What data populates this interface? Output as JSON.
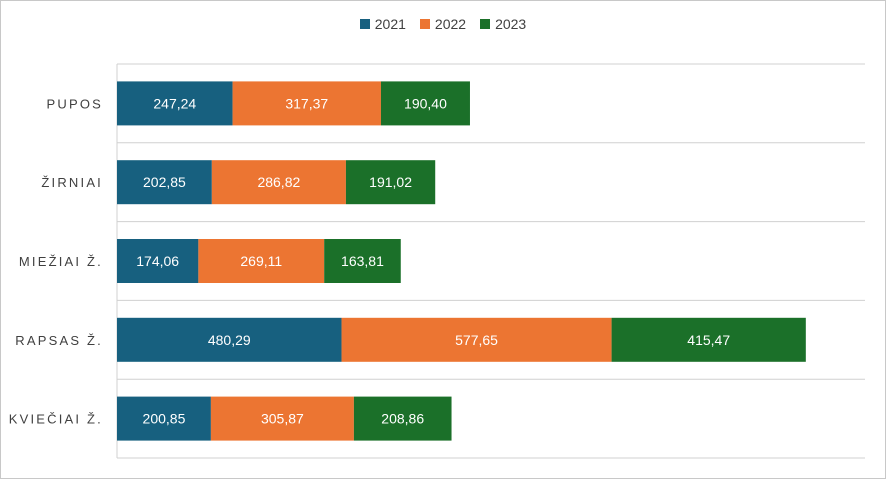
{
  "chart_data": {
    "type": "bar",
    "orientation": "horizontal",
    "stacked": true,
    "title": "",
    "xlabel": "",
    "ylabel": "",
    "categories": [
      "PUPOS",
      "ŽIRNIAI",
      "MIEŽIAI Ž.",
      "RAPSAS Ž.",
      "KVIEČIAI Ž."
    ],
    "series": [
      {
        "name": "2021",
        "color": "#17607f",
        "values": [
          247.24,
          202.85,
          174.06,
          480.29,
          200.85
        ],
        "labels": [
          "247,24",
          "202,85",
          "174,06",
          "480,29",
          "200,85"
        ]
      },
      {
        "name": "2022",
        "color": "#ec7532",
        "values": [
          317.37,
          286.82,
          269.11,
          577.65,
          305.87
        ],
        "labels": [
          "317,37",
          "286,82",
          "269,11",
          "577,65",
          "305,87"
        ]
      },
      {
        "name": "2023",
        "color": "#1b7029",
        "values": [
          190.4,
          191.02,
          163.81,
          415.47,
          208.86
        ],
        "labels": [
          "190,40",
          "191,02",
          "163,81",
          "415,47",
          "208,86"
        ]
      }
    ],
    "xlim": [
      0,
      1600
    ],
    "grid": "horizontal separators",
    "legend_position": "top-center"
  }
}
